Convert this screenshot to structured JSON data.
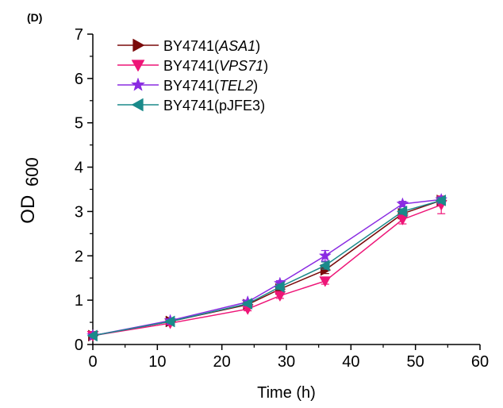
{
  "panel_label": "(D)",
  "chart_data": {
    "type": "line",
    "xlabel": "Time (h)",
    "ylabel_main": "OD",
    "ylabel_sub": "600",
    "xlim": [
      0,
      60
    ],
    "ylim": [
      0,
      7
    ],
    "xticks": [
      0,
      10,
      20,
      30,
      40,
      50,
      60
    ],
    "yticks": [
      0,
      1,
      2,
      3,
      4,
      5,
      6,
      7
    ],
    "grid": false,
    "legend_position": "top-left",
    "x": [
      0,
      12,
      24,
      29,
      36,
      48,
      54
    ],
    "series": [
      {
        "name_prefix": "BY4741(",
        "name_italic": "ASA1",
        "name_suffix": ")",
        "color": "#7a0a0a",
        "marker": "triangle-right",
        "values": [
          0.2,
          0.52,
          0.9,
          1.25,
          1.68,
          2.95,
          3.25
        ],
        "errors": [
          0.02,
          0.03,
          0.04,
          0.06,
          0.08,
          0.06,
          0.06
        ]
      },
      {
        "name_prefix": "BY4741(",
        "name_italic": "VPS71",
        "name_suffix": ")",
        "color": "#ee1577",
        "marker": "triangle-down",
        "values": [
          0.2,
          0.48,
          0.8,
          1.1,
          1.43,
          2.82,
          3.15
        ],
        "errors": [
          0.02,
          0.03,
          0.04,
          0.06,
          0.07,
          0.1,
          0.2
        ]
      },
      {
        "name_prefix": "BY4741(",
        "name_italic": "TEL2",
        "name_suffix": ")",
        "color": "#8a2be2",
        "marker": "star",
        "values": [
          0.2,
          0.54,
          0.96,
          1.38,
          2.0,
          3.17,
          3.27
        ],
        "errors": [
          0.02,
          0.03,
          0.04,
          0.06,
          0.12,
          0.06,
          0.06
        ]
      },
      {
        "name_prefix": "BY4741(pJFE3)",
        "name_italic": "",
        "name_suffix": "",
        "color": "#1a8a8a",
        "marker": "triangle-left",
        "values": [
          0.2,
          0.52,
          0.92,
          1.3,
          1.78,
          3.0,
          3.25
        ],
        "errors": [
          0.02,
          0.03,
          0.04,
          0.06,
          0.08,
          0.06,
          0.06
        ]
      }
    ]
  }
}
